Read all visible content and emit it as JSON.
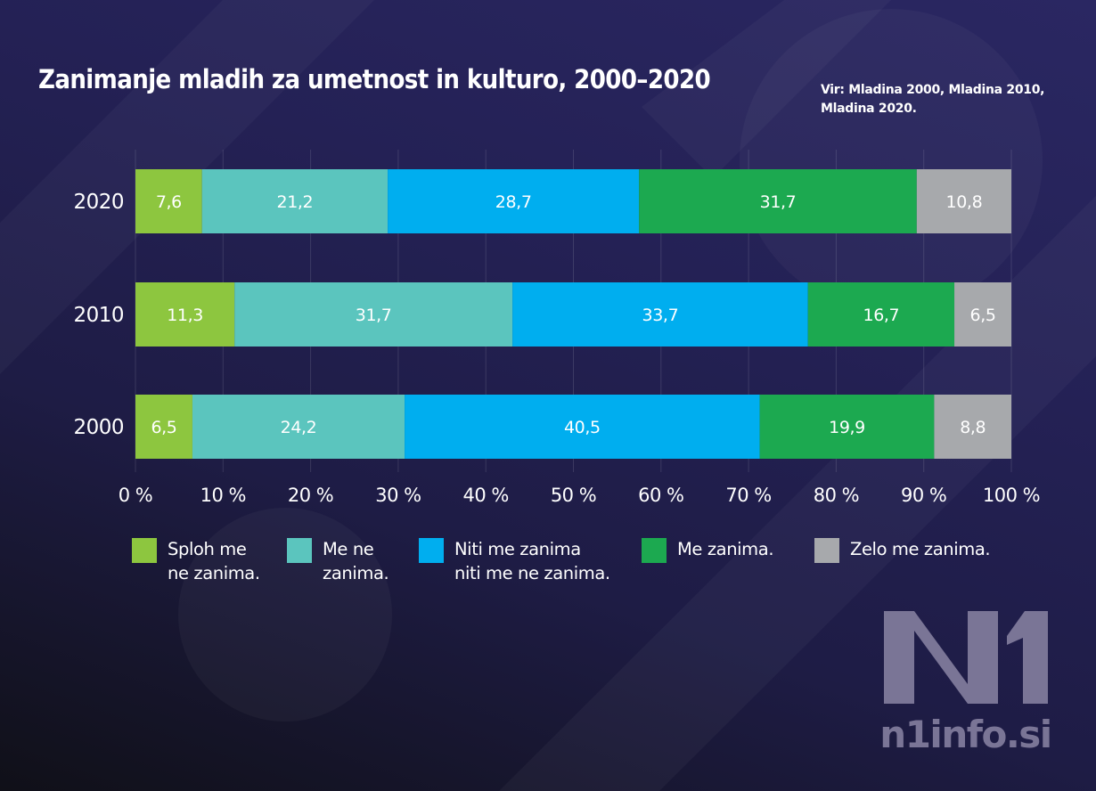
{
  "header": {
    "title": "Zanimanje mladih za umetnost in kulturo, 2000–2020",
    "source": "Vir: Mladina 2000, Mladina 2010, Mladina 2020."
  },
  "branding": {
    "logo_mark": "N1",
    "logo_text": "n1info.si",
    "watermark_text": "n1info"
  },
  "chart_data": {
    "type": "bar",
    "orientation": "horizontal",
    "stacked": "percent",
    "title": "Zanimanje mladih za umetnost in kulturo, 2000–2020",
    "xlabel": "",
    "ylabel": "",
    "xlim": [
      0,
      100
    ],
    "grid": true,
    "legend_position": "bottom",
    "categories": [
      "2020",
      "2010",
      "2000"
    ],
    "x_ticks": [
      0,
      10,
      20,
      30,
      40,
      50,
      60,
      70,
      80,
      90,
      100
    ],
    "x_tick_labels": [
      "0 %",
      "10 %",
      "20 %",
      "30 %",
      "40 %",
      "50 %",
      "60 %",
      "70 %",
      "80 %",
      "90 %",
      "100 %"
    ],
    "series": [
      {
        "name": "Sploh me ne zanima.",
        "legend_label": "Sploh me\nne zanima.",
        "color": "#8dc63f",
        "values": [
          7.6,
          11.3,
          6.5
        ],
        "labels": [
          "7,6",
          "11,3",
          "6,5"
        ]
      },
      {
        "name": "Me ne zanima.",
        "legend_label": "Me ne\nzanima.",
        "color": "#5bc5be",
        "values": [
          21.2,
          31.7,
          24.2
        ],
        "labels": [
          "21,2",
          "31,7",
          "24,2"
        ]
      },
      {
        "name": "Niti me zanima niti me ne zanima.",
        "legend_label": "Niti me zanima\nniti me ne zanima.",
        "color": "#00aeef",
        "values": [
          28.7,
          33.7,
          40.5
        ],
        "labels": [
          "28,7",
          "33,7",
          "40,5"
        ]
      },
      {
        "name": "Me zanima.",
        "legend_label": "Me zanima.",
        "color": "#1ca950",
        "values": [
          31.7,
          16.7,
          19.9
        ],
        "labels": [
          "31,7",
          "16,7",
          "19,9"
        ]
      },
      {
        "name": "Zelo me zanima.",
        "legend_label": "Zelo me zanima.",
        "color": "#a7a9ac",
        "values": [
          10.8,
          6.5,
          8.8
        ],
        "labels": [
          "10,8",
          "6,5",
          "8,8"
        ]
      }
    ]
  }
}
